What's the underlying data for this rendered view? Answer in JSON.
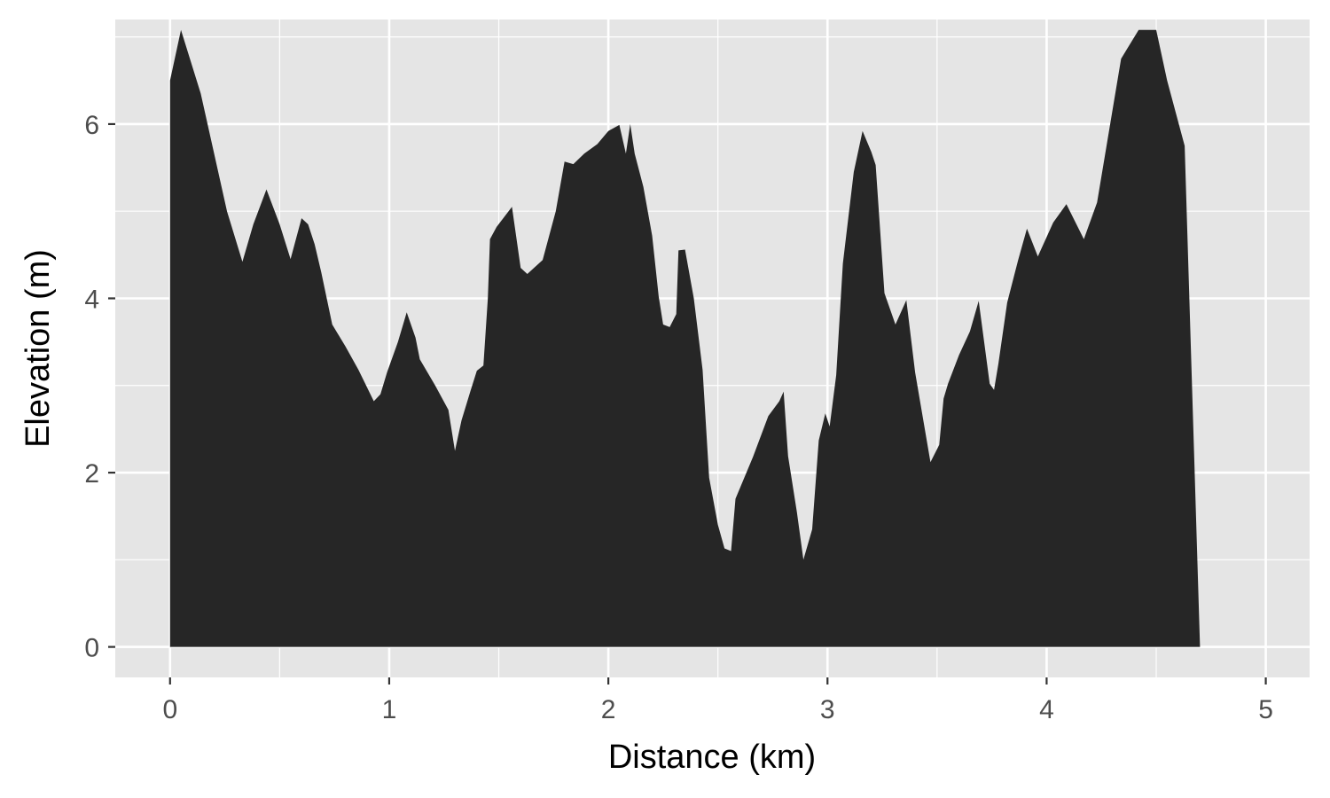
{
  "chart_data": {
    "type": "area",
    "xlabel": "Distance (km)",
    "ylabel": "Elevation (m)",
    "xlim": [
      -0.25,
      5.2
    ],
    "ylim": [
      -0.35,
      7.2
    ],
    "x_ticks": [
      0,
      1,
      2,
      3,
      4,
      5
    ],
    "x_tick_labels": [
      "0",
      "1",
      "2",
      "3",
      "4",
      "5"
    ],
    "y_ticks": [
      0,
      2,
      4,
      6
    ],
    "y_tick_labels": [
      "0",
      "2",
      "4",
      "6"
    ],
    "grid": true,
    "colors": {
      "panel_background": "#e5e5e5",
      "grid": "#ffffff",
      "fill": "#262626",
      "tick_label": "#4d4d4d",
      "axis_title": "#000000"
    },
    "series": [
      {
        "x": [
          0.0,
          0.05,
          0.14,
          0.26,
          0.33,
          0.38,
          0.44,
          0.5,
          0.55,
          0.6,
          0.63,
          0.66,
          0.69,
          0.74,
          0.8,
          0.86,
          0.93,
          0.96,
          0.99,
          1.04,
          1.08,
          1.12,
          1.14,
          1.21,
          1.27,
          1.3,
          1.33,
          1.37,
          1.4,
          1.43,
          1.45,
          1.46,
          1.49,
          1.56,
          1.6,
          1.63,
          1.7,
          1.76,
          1.8,
          1.84,
          1.89,
          1.95,
          2.0,
          2.05,
          2.08,
          2.1,
          2.12,
          2.16,
          2.2,
          2.23,
          2.25,
          2.28,
          2.31,
          2.32,
          2.35,
          2.39,
          2.43,
          2.46,
          2.5,
          2.53,
          2.56,
          2.58,
          2.66,
          2.73,
          2.78,
          2.8,
          2.82,
          2.86,
          2.89,
          2.93,
          2.96,
          2.99,
          3.01,
          3.04,
          3.07,
          3.12,
          3.16,
          3.2,
          3.22,
          3.26,
          3.31,
          3.36,
          3.4,
          3.47,
          3.51,
          3.53,
          3.55,
          3.6,
          3.65,
          3.69,
          3.74,
          3.76,
          3.78,
          3.82,
          3.87,
          3.91,
          3.96,
          4.03,
          4.09,
          4.17,
          4.23,
          4.34,
          4.42,
          4.5,
          4.55,
          4.63,
          4.7,
          4.77,
          4.8,
          4.84,
          4.89,
          4.93,
          4.97,
          4.97
        ],
        "y": [
          6.5,
          7.08,
          6.35,
          5.0,
          4.42,
          4.85,
          5.25,
          4.85,
          4.45,
          4.92,
          4.85,
          4.62,
          4.3,
          3.7,
          3.45,
          3.18,
          2.82,
          2.9,
          3.15,
          3.5,
          3.84,
          3.55,
          3.3,
          3.0,
          2.72,
          2.25,
          2.6,
          2.93,
          3.17,
          3.23,
          4.0,
          4.68,
          4.82,
          5.05,
          4.35,
          4.28,
          4.44,
          5.0,
          5.57,
          5.54,
          5.66,
          5.77,
          5.92,
          5.99,
          5.66,
          6.0,
          5.66,
          5.28,
          4.72,
          4.02,
          3.7,
          3.67,
          3.82,
          4.55,
          4.56,
          4.0,
          3.18,
          1.94,
          1.4,
          1.13,
          1.1,
          1.7,
          2.18,
          2.65,
          2.82,
          2.93,
          2.19,
          1.55,
          1.0,
          1.35,
          2.37,
          2.68,
          2.53,
          3.12,
          4.4,
          5.45,
          5.92,
          5.68,
          5.53,
          4.06,
          3.7,
          3.98,
          3.15,
          2.12,
          2.32,
          2.85,
          3.02,
          3.35,
          3.62,
          3.97,
          3.02,
          2.95,
          3.25,
          3.95,
          4.44,
          4.8,
          4.48,
          4.87,
          5.08,
          4.68,
          5.1,
          6.75,
          7.08,
          7.08,
          6.5,
          5.75,
          0.0,
          0.0,
          0.0,
          0.0,
          0.0,
          0.0,
          0.0,
          0.0
        ]
      }
    ]
  }
}
